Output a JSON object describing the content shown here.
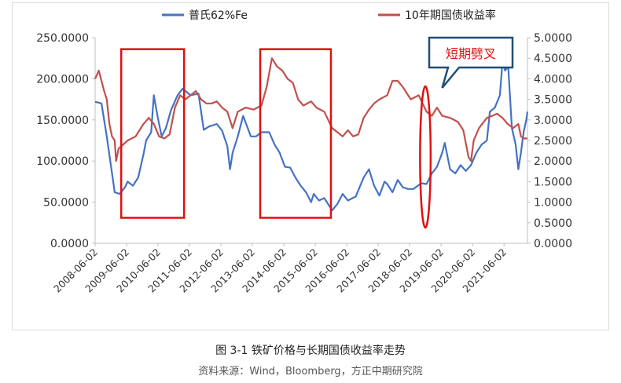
{
  "figure": {
    "caption": "图 3-1 铁矿价格与长期国债收益率走势",
    "source": "资料来源：Wind，Bloomberg，方正中期研究院"
  },
  "chart_data": {
    "type": "line",
    "title": "",
    "xlabel": "",
    "ylabel_left": "",
    "ylabel_right": "",
    "y_left_lim": [
      0,
      250
    ],
    "y_left_ticks": [
      "0.0000",
      "50.0000",
      "100.0000",
      "150.0000",
      "200.0000",
      "250.0000"
    ],
    "y_right_lim": [
      0,
      5
    ],
    "y_right_ticks": [
      "0.0000",
      "0.5000",
      "1.0000",
      "1.5000",
      "2.0000",
      "2.5000",
      "3.0000",
      "3.5000",
      "4.0000",
      "4.5000",
      "5.0000"
    ],
    "x_lim": [
      "2008-06-02",
      "2022-03-01"
    ],
    "x_ticks": [
      "2008-06-02",
      "2009-06-02",
      "2010-06-02",
      "2011-06-02",
      "2012-06-02",
      "2013-06-02",
      "2014-06-02",
      "2015-06-02",
      "2016-06-02",
      "2017-06-02",
      "2018-06-02",
      "2019-06-02",
      "2020-06-02",
      "2021-06-02"
    ],
    "grid": false,
    "legend_position": "top",
    "series": [
      {
        "name": "普氏62%Fe",
        "axis": "left",
        "color": "#4472c4",
        "points": [
          [
            "2008-06-02",
            172
          ],
          [
            "2008-08-15",
            170
          ],
          [
            "2008-10-15",
            130
          ],
          [
            "2008-12-15",
            85
          ],
          [
            "2009-01-15",
            62
          ],
          [
            "2009-03-15",
            60
          ],
          [
            "2009-05-15",
            68
          ],
          [
            "2009-06-15",
            75
          ],
          [
            "2009-08-15",
            70
          ],
          [
            "2009-10-15",
            80
          ],
          [
            "2009-12-15",
            108
          ],
          [
            "2010-01-15",
            125
          ],
          [
            "2010-03-15",
            135
          ],
          [
            "2010-04-15",
            180
          ],
          [
            "2010-06-01",
            152
          ],
          [
            "2010-07-15",
            130
          ],
          [
            "2010-09-01",
            140
          ],
          [
            "2010-11-01",
            162
          ],
          [
            "2011-01-15",
            180
          ],
          [
            "2011-03-15",
            188
          ],
          [
            "2011-06-15",
            180
          ],
          [
            "2011-09-15",
            182
          ],
          [
            "2011-11-15",
            138
          ],
          [
            "2012-01-15",
            142
          ],
          [
            "2012-04-15",
            145
          ],
          [
            "2012-06-15",
            137
          ],
          [
            "2012-08-15",
            118
          ],
          [
            "2012-09-15",
            90
          ],
          [
            "2012-10-15",
            110
          ],
          [
            "2012-12-15",
            130
          ],
          [
            "2013-02-15",
            155
          ],
          [
            "2013-05-15",
            130
          ],
          [
            "2013-07-15",
            130
          ],
          [
            "2013-09-15",
            135
          ],
          [
            "2013-12-15",
            135
          ],
          [
            "2014-02-15",
            120
          ],
          [
            "2014-04-15",
            110
          ],
          [
            "2014-06-15",
            93
          ],
          [
            "2014-08-15",
            92
          ],
          [
            "2014-10-15",
            80
          ],
          [
            "2014-12-15",
            70
          ],
          [
            "2015-02-15",
            62
          ],
          [
            "2015-04-15",
            50
          ],
          [
            "2015-05-15",
            60
          ],
          [
            "2015-07-15",
            52
          ],
          [
            "2015-09-15",
            55
          ],
          [
            "2015-11-15",
            45
          ],
          [
            "2015-12-15",
            40
          ],
          [
            "2016-02-15",
            48
          ],
          [
            "2016-04-15",
            60
          ],
          [
            "2016-06-15",
            52
          ],
          [
            "2016-09-15",
            57
          ],
          [
            "2016-12-15",
            80
          ],
          [
            "2017-02-15",
            90
          ],
          [
            "2017-04-15",
            70
          ],
          [
            "2017-06-15",
            58
          ],
          [
            "2017-08-15",
            75
          ],
          [
            "2017-09-15",
            72
          ],
          [
            "2017-11-15",
            62
          ],
          [
            "2018-01-15",
            77
          ],
          [
            "2018-03-15",
            68
          ],
          [
            "2018-05-15",
            66
          ],
          [
            "2018-07-15",
            66
          ],
          [
            "2018-10-15",
            73
          ],
          [
            "2018-12-15",
            72
          ],
          [
            "2019-02-15",
            85
          ],
          [
            "2019-04-15",
            93
          ],
          [
            "2019-06-15",
            110
          ],
          [
            "2019-07-15",
            122
          ],
          [
            "2019-09-15",
            90
          ],
          [
            "2019-11-15",
            85
          ],
          [
            "2020-01-15",
            95
          ],
          [
            "2020-03-15",
            88
          ],
          [
            "2020-05-15",
            95
          ],
          [
            "2020-07-15",
            110
          ],
          [
            "2020-09-15",
            120
          ],
          [
            "2020-11-15",
            125
          ],
          [
            "2020-12-20",
            160
          ],
          [
            "2021-02-15",
            165
          ],
          [
            "2021-04-15",
            180
          ],
          [
            "2021-05-15",
            220
          ],
          [
            "2021-06-15",
            210
          ],
          [
            "2021-07-20",
            215
          ],
          [
            "2021-09-01",
            140
          ],
          [
            "2021-10-15",
            120
          ],
          [
            "2021-11-15",
            90
          ],
          [
            "2021-12-15",
            110
          ],
          [
            "2022-01-15",
            135
          ],
          [
            "2022-02-15",
            150
          ],
          [
            "2022-03-01",
            160
          ]
        ]
      },
      {
        "name": "10年期国债收益率",
        "axis": "right",
        "color": "#c0504d",
        "points": [
          [
            "2008-06-02",
            4.0
          ],
          [
            "2008-07-15",
            4.2
          ],
          [
            "2008-09-15",
            3.7
          ],
          [
            "2008-10-15",
            3.5
          ],
          [
            "2008-11-15",
            2.9
          ],
          [
            "2008-12-15",
            2.6
          ],
          [
            "2009-01-15",
            2.5
          ],
          [
            "2009-02-01",
            2.0
          ],
          [
            "2009-03-01",
            2.3
          ],
          [
            "2009-06-15",
            2.5
          ],
          [
            "2009-09-15",
            2.6
          ],
          [
            "2009-12-15",
            2.9
          ],
          [
            "2010-02-15",
            3.05
          ],
          [
            "2010-04-15",
            2.9
          ],
          [
            "2010-06-15",
            2.6
          ],
          [
            "2010-08-15",
            2.55
          ],
          [
            "2010-10-15",
            2.65
          ],
          [
            "2010-12-15",
            3.3
          ],
          [
            "2011-02-15",
            3.6
          ],
          [
            "2011-04-15",
            3.5
          ],
          [
            "2011-06-15",
            3.6
          ],
          [
            "2011-08-15",
            3.7
          ],
          [
            "2011-10-15",
            3.5
          ],
          [
            "2011-12-15",
            3.4
          ],
          [
            "2012-02-15",
            3.4
          ],
          [
            "2012-04-15",
            3.45
          ],
          [
            "2012-06-15",
            3.3
          ],
          [
            "2012-08-15",
            3.2
          ],
          [
            "2012-10-15",
            2.8
          ],
          [
            "2012-12-15",
            3.2
          ],
          [
            "2013-03-15",
            3.3
          ],
          [
            "2013-06-15",
            3.25
          ],
          [
            "2013-09-15",
            3.35
          ],
          [
            "2013-11-15",
            3.8
          ],
          [
            "2014-01-15",
            4.5
          ],
          [
            "2014-03-15",
            4.3
          ],
          [
            "2014-05-15",
            4.2
          ],
          [
            "2014-07-15",
            4.0
          ],
          [
            "2014-09-15",
            3.9
          ],
          [
            "2014-11-15",
            3.5
          ],
          [
            "2015-01-15",
            3.35
          ],
          [
            "2015-04-15",
            3.45
          ],
          [
            "2015-06-15",
            3.3
          ],
          [
            "2015-09-15",
            3.2
          ],
          [
            "2015-12-15",
            2.8
          ],
          [
            "2016-02-15",
            2.7
          ],
          [
            "2016-04-15",
            2.6
          ],
          [
            "2016-06-15",
            2.75
          ],
          [
            "2016-08-15",
            2.6
          ],
          [
            "2016-10-15",
            2.65
          ],
          [
            "2016-12-15",
            3.05
          ],
          [
            "2017-02-15",
            3.25
          ],
          [
            "2017-04-15",
            3.4
          ],
          [
            "2017-06-15",
            3.5
          ],
          [
            "2017-09-15",
            3.6
          ],
          [
            "2017-11-15",
            3.95
          ],
          [
            "2018-01-15",
            3.95
          ],
          [
            "2018-03-15",
            3.8
          ],
          [
            "2018-06-15",
            3.5
          ],
          [
            "2018-09-15",
            3.6
          ],
          [
            "2018-12-15",
            3.2
          ],
          [
            "2019-02-15",
            3.1
          ],
          [
            "2019-04-15",
            3.3
          ],
          [
            "2019-06-15",
            3.1
          ],
          [
            "2019-09-15",
            3.05
          ],
          [
            "2019-12-15",
            2.95
          ],
          [
            "2020-02-15",
            2.75
          ],
          [
            "2020-04-15",
            2.1
          ],
          [
            "2020-05-15",
            2.0
          ],
          [
            "2020-06-15",
            2.5
          ],
          [
            "2020-08-15",
            2.8
          ],
          [
            "2020-11-15",
            3.05
          ],
          [
            "2021-01-15",
            3.1
          ],
          [
            "2021-03-15",
            3.15
          ],
          [
            "2021-05-15",
            3.05
          ],
          [
            "2021-07-15",
            2.9
          ],
          [
            "2021-09-15",
            2.8
          ],
          [
            "2021-11-15",
            2.9
          ],
          [
            "2021-12-15",
            2.6
          ],
          [
            "2022-01-15",
            2.55
          ],
          [
            "2022-03-01",
            2.55
          ]
        ]
      }
    ],
    "annotations": [
      {
        "kind": "rect",
        "x0": "2009-04-01",
        "x1": "2011-04-01",
        "y0_right": 0.62,
        "y1_right": 4.72
      },
      {
        "kind": "rect",
        "x0": "2013-09-01",
        "x1": "2015-12-01",
        "y0_right": 0.62,
        "y1_right": 4.72
      },
      {
        "kind": "ellipse",
        "x0": "2018-10-01",
        "x1": "2019-02-01",
        "y0_right": 0.38,
        "y1_right": 3.82
      },
      {
        "kind": "callout",
        "label": "短期劈叉",
        "x": "2019-06-15",
        "y_right": 3.78
      }
    ]
  }
}
